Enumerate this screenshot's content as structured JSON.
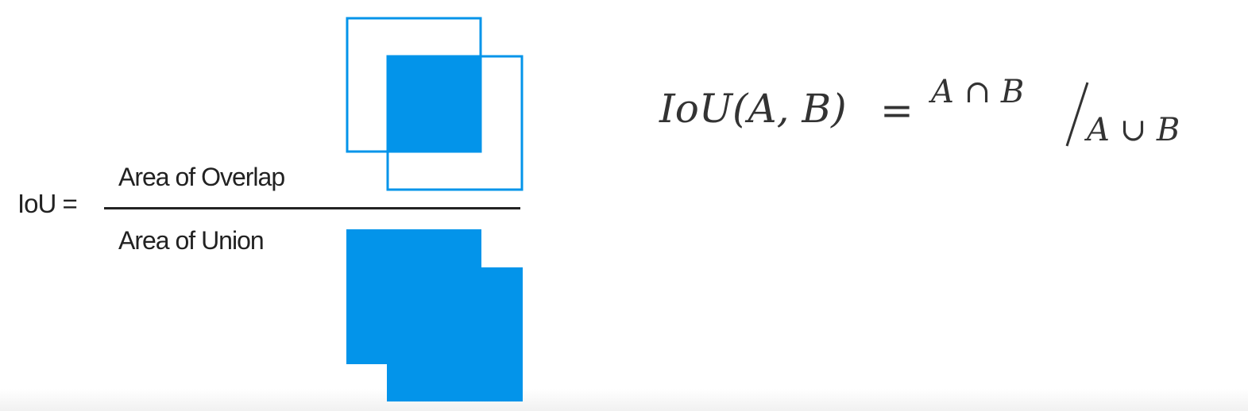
{
  "colors": {
    "box_blue": "#0394ea",
    "text_dark": "#222222"
  },
  "formula_left": {
    "lhs": "IoU =",
    "numerator": "Area of Overlap",
    "denominator": "Area of Union"
  },
  "formula_right": {
    "lhs_func": "IoU",
    "lhs_args": "(A, B)",
    "equals": "=",
    "numerator": "A ∩ B",
    "denominator": "A ∪ B"
  }
}
